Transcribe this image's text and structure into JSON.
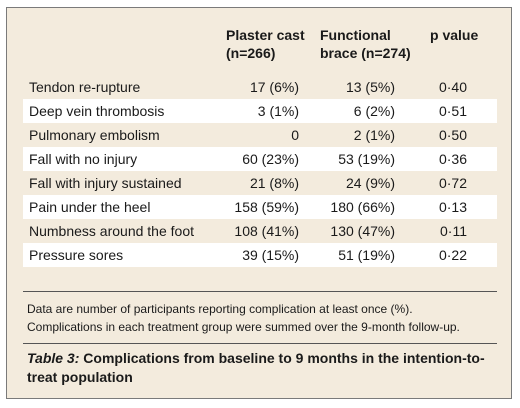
{
  "table": {
    "headers": {
      "plaster_cast": [
        "Plaster cast",
        "(n=266)"
      ],
      "functional_brace": [
        "Functional",
        "brace (n=274)"
      ],
      "p_value": [
        "p value"
      ]
    },
    "rows": [
      {
        "label": "Tendon re-rupture",
        "plaster_cast": "17 (6%)",
        "functional_brace": "13 (5%)",
        "p": "0·40"
      },
      {
        "label": "Deep vein thrombosis",
        "plaster_cast": "3 (1%)",
        "functional_brace": "6 (2%)",
        "p": "0·51"
      },
      {
        "label": "Pulmonary embolism",
        "plaster_cast": "0",
        "functional_brace": "2 (1%)",
        "p": "0·50"
      },
      {
        "label": "Fall with no injury",
        "plaster_cast": "60 (23%)",
        "functional_brace": "53 (19%)",
        "p": "0·36"
      },
      {
        "label": "Fall with injury sustained",
        "plaster_cast": "21 (8%)",
        "functional_brace": "24 (9%)",
        "p": "0·72"
      },
      {
        "label": "Pain under the heel",
        "plaster_cast": "158 (59%)",
        "functional_brace": "180 (66%)",
        "p": "0·13"
      },
      {
        "label": "Numbness around the foot",
        "plaster_cast": "108 (41%)",
        "functional_brace": "130 (47%)",
        "p": "0·11"
      },
      {
        "label": "Pressure sores",
        "plaster_cast": "39 (15%)",
        "functional_brace": "51 (19%)",
        "p": "0·22"
      }
    ]
  },
  "footnote": [
    "Data are number of participants reporting complication at least once (%).",
    "Complications in each treatment group were summed over the 9-month follow-up."
  ],
  "caption": {
    "label": "Table 3:",
    "text": " Complications from baseline to 9 months in the intention-to-treat population"
  }
}
